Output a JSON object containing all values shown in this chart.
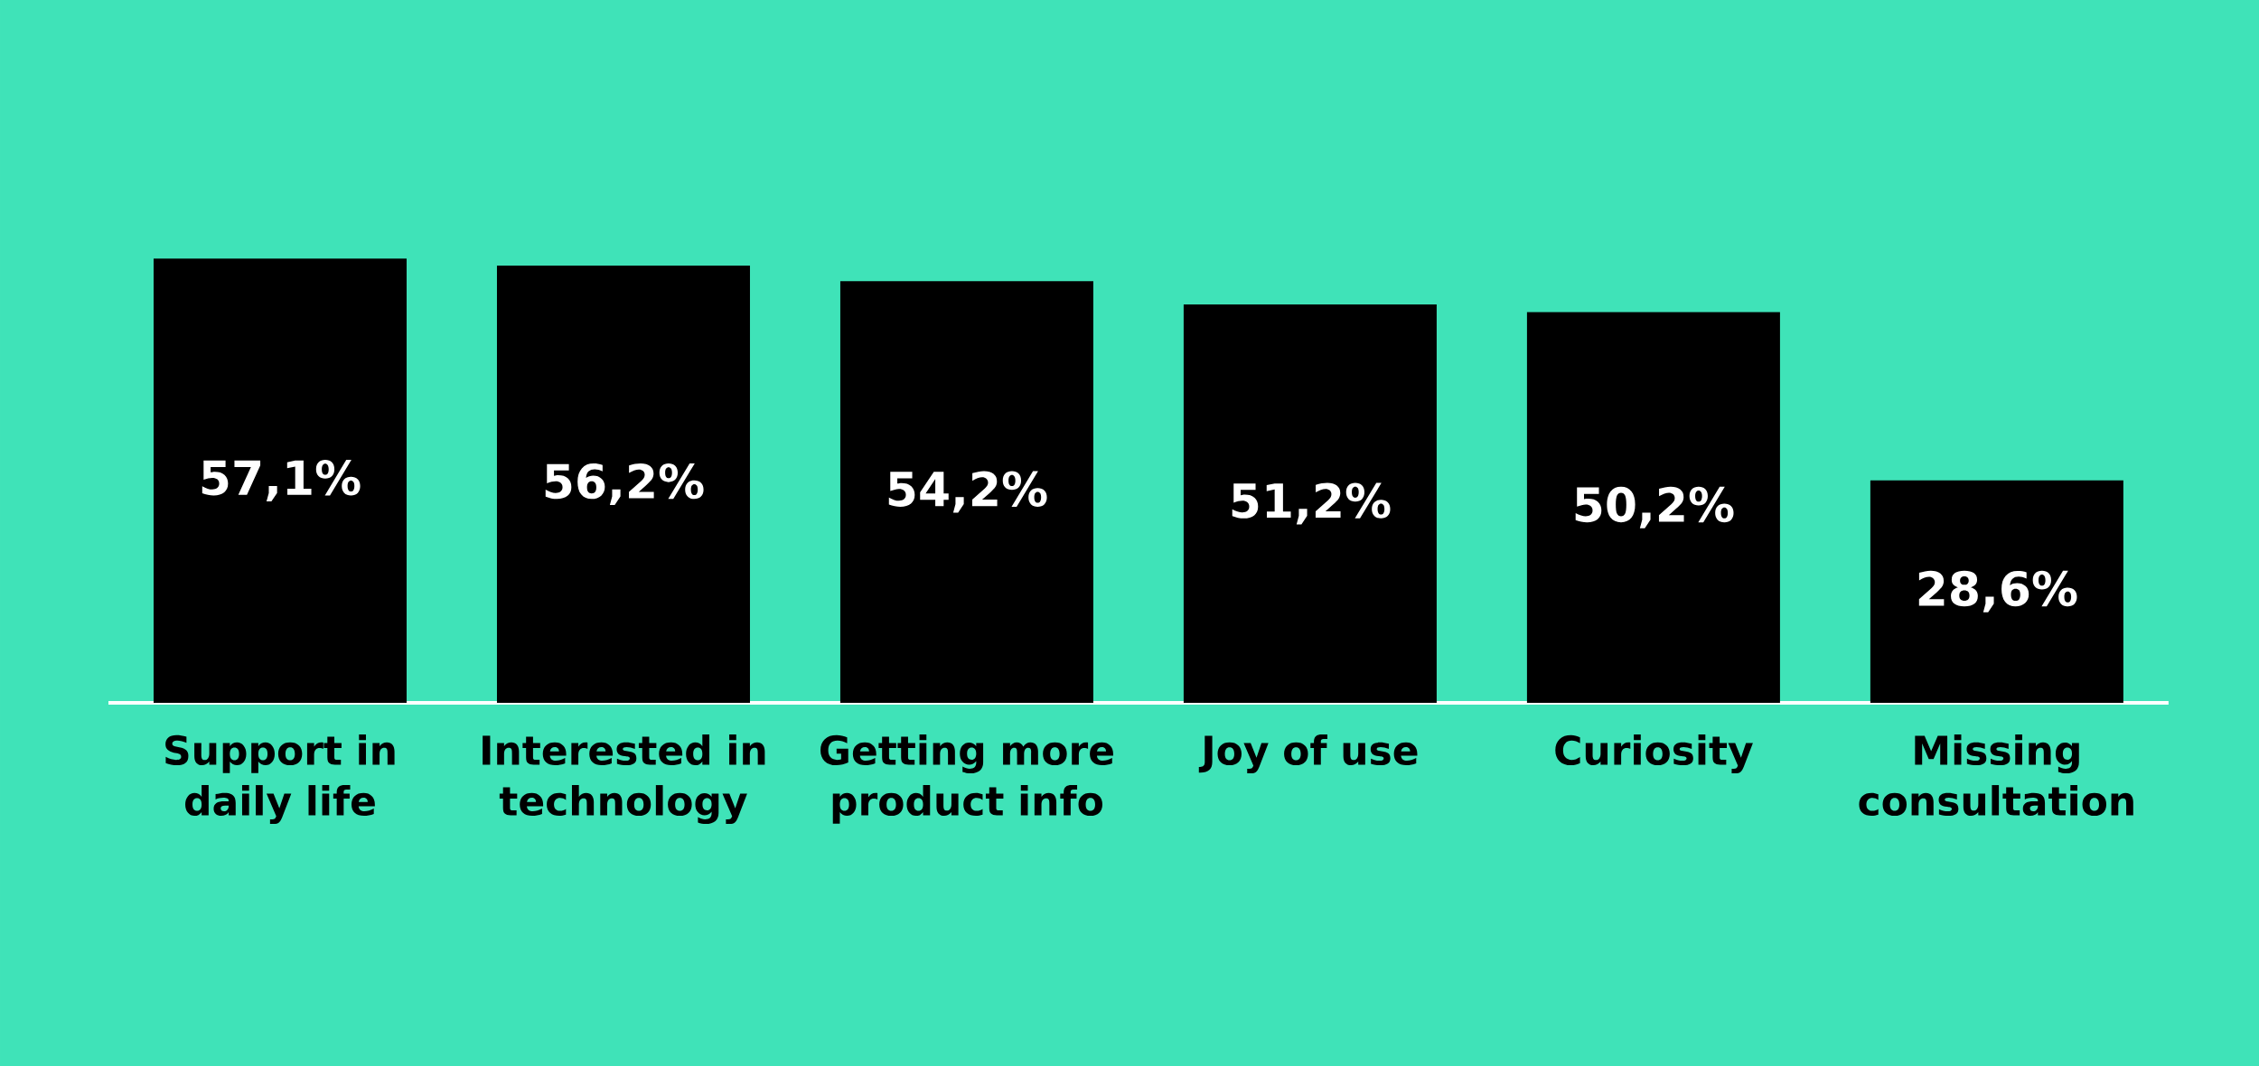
{
  "chart_data": {
    "type": "bar",
    "categories": [
      "Support in daily life",
      "Interested in technology",
      "Getting more product info",
      "Joy of use",
      "Curiosity",
      "Missing consultation"
    ],
    "values": [
      57.1,
      56.2,
      54.2,
      51.2,
      50.2,
      28.6
    ],
    "value_labels": [
      "57,1%",
      "56,2%",
      "54,2%",
      "51,2%",
      "50,2%",
      "28,6%"
    ],
    "color": "#000000"
  }
}
